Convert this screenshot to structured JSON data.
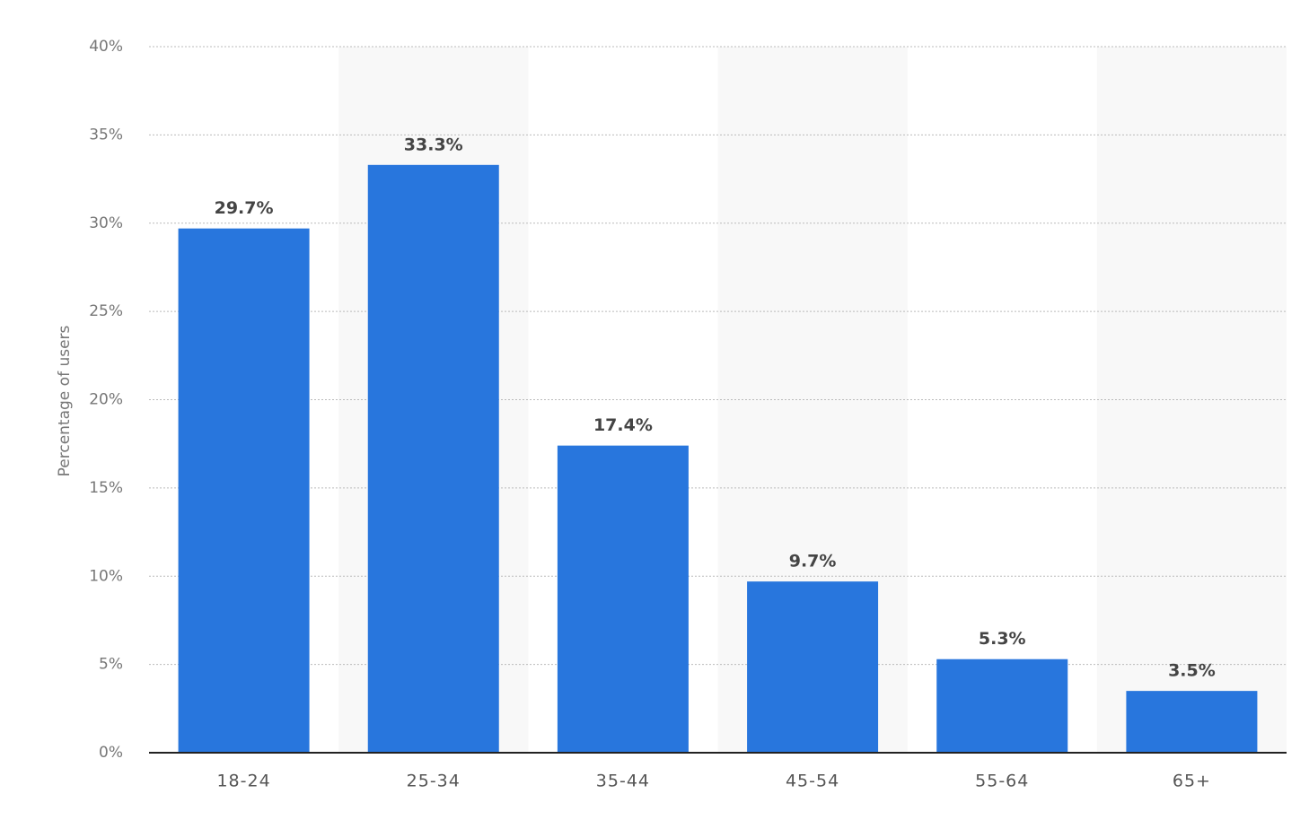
{
  "chart_data": {
    "type": "bar",
    "y_label": "Percentage of users",
    "categories": [
      "18-24",
      "25-34",
      "35-44",
      "45-54",
      "55-64",
      "65+"
    ],
    "values": [
      29.7,
      33.3,
      17.4,
      9.7,
      5.3,
      3.5
    ],
    "value_labels": [
      "29.7%",
      "33.3%",
      "17.4%",
      "9.7%",
      "5.3%",
      "3.5%"
    ],
    "color": "#2876dd",
    "ylim": [
      0,
      40
    ],
    "yticks": [
      {
        "value": 0,
        "label": "0%"
      },
      {
        "value": 5,
        "label": "5%"
      },
      {
        "value": 10,
        "label": "10%"
      },
      {
        "value": 15,
        "label": "15%"
      },
      {
        "value": 20,
        "label": "20%"
      },
      {
        "value": 25,
        "label": "25%"
      },
      {
        "value": 30,
        "label": "30%"
      },
      {
        "value": 35,
        "label": "35%"
      },
      {
        "value": 40,
        "label": "40%"
      }
    ],
    "grid": true
  }
}
